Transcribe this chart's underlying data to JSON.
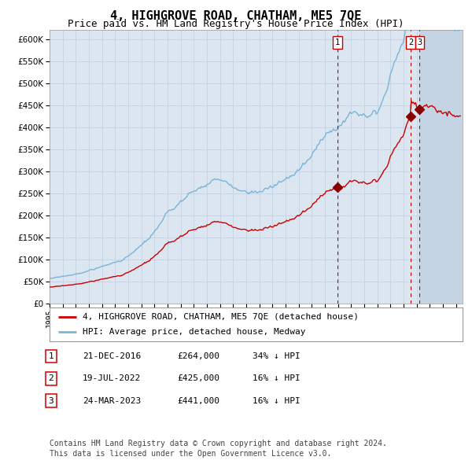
{
  "title": "4, HIGHGROVE ROAD, CHATHAM, ME5 7QE",
  "subtitle": "Price paid vs. HM Land Registry's House Price Index (HPI)",
  "ylim": [
    0,
    620000
  ],
  "yticks": [
    0,
    50000,
    100000,
    150000,
    200000,
    250000,
    300000,
    350000,
    400000,
    450000,
    500000,
    550000,
    600000
  ],
  "xlim_start": 1995.0,
  "xlim_end": 2026.5,
  "background_color": "#ffffff",
  "plot_bg_color": "#dce6f1",
  "grid_color": "#c8d4e3",
  "hpi_color": "#7ab4d8",
  "price_color": "#cc0000",
  "sale_marker_color": "#880000",
  "vline_color": "#cc0000",
  "future_bg_color": "#c4d4e4",
  "transactions": [
    {
      "date_num": 2016.97,
      "price": 264000,
      "label": "1",
      "hpi_ratio": 0.66
    },
    {
      "date_num": 2022.54,
      "price": 425000,
      "label": "2",
      "hpi_ratio": 0.84
    },
    {
      "date_num": 2023.23,
      "price": 441000,
      "label": "3",
      "hpi_ratio": 0.84
    }
  ],
  "legend_entries": [
    {
      "label": "4, HIGHGROVE ROAD, CHATHAM, ME5 7QE (detached house)",
      "color": "#cc0000"
    },
    {
      "label": "HPI: Average price, detached house, Medway",
      "color": "#7ab4d8"
    }
  ],
  "table_rows": [
    {
      "num": "1",
      "date": "21-DEC-2016",
      "price": "£264,000",
      "note": "34% ↓ HPI"
    },
    {
      "num": "2",
      "date": "19-JUL-2022",
      "price": "£425,000",
      "note": "16% ↓ HPI"
    },
    {
      "num": "3",
      "date": "24-MAR-2023",
      "price": "£441,000",
      "note": "16% ↓ HPI"
    }
  ],
  "footer": "Contains HM Land Registry data © Crown copyright and database right 2024.\nThis data is licensed under the Open Government Licence v3.0.",
  "title_fontsize": 11,
  "subtitle_fontsize": 9,
  "tick_fontsize": 7.5,
  "legend_fontsize": 8,
  "table_fontsize": 8,
  "footer_fontsize": 7
}
